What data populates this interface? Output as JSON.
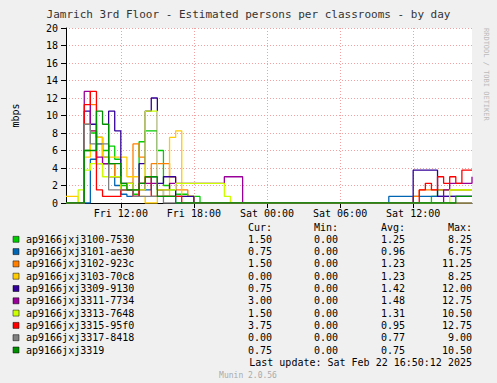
{
  "chart_data": {
    "type": "line",
    "title": "Jamrich 3rd Floor - Estimated persons per classrooms - by day",
    "y_label": "mbps",
    "line_style": "step",
    "grid": true,
    "xlim": [
      7.5,
      40.83
    ],
    "xticks": [
      {
        "value": 12,
        "label": "Fri 12:00"
      },
      {
        "value": 18,
        "label": "Fri 18:00"
      },
      {
        "value": 24,
        "label": "Sat 00:00"
      },
      {
        "value": 30,
        "label": "Sat 06:00"
      },
      {
        "value": 36,
        "label": "Sat 12:00"
      }
    ],
    "ylim": [
      0,
      20
    ],
    "yticks": [
      0,
      2,
      4,
      6,
      8,
      10,
      12,
      14,
      16,
      18,
      20
    ],
    "x": [
      7.5,
      8,
      8.5,
      9,
      9.5,
      10,
      10.5,
      11,
      11.5,
      12,
      12.5,
      13,
      13.5,
      14,
      14.5,
      15,
      15.5,
      16,
      16.5,
      17,
      17.5,
      18,
      18.5,
      19,
      19.5,
      20,
      20.5,
      21,
      22,
      23,
      24,
      25,
      26,
      27,
      28,
      29,
      30,
      31,
      32,
      33,
      33.5,
      34,
      34.5,
      35,
      35.5,
      36,
      36.5,
      37,
      37.5,
      38,
      38.5,
      39,
      39.5,
      40,
      40.5,
      40.83
    ],
    "stat_headers": [
      "Cur:",
      "Min:",
      "Avg:",
      "Max:"
    ],
    "series": [
      {
        "name": "ap9166jxj3100-7530",
        "color": "#00CC00",
        "stats": [
          "1.50",
          "0.00",
          "1.25",
          "8.25"
        ],
        "values": [
          0,
          0,
          0,
          6,
          8,
          7.5,
          6,
          6.5,
          5,
          2,
          1.5,
          1,
          7,
          8.25,
          8.25,
          6,
          2,
          1.5,
          1,
          1,
          0.75,
          0.75,
          0,
          0,
          0,
          0,
          0,
          0,
          0,
          0,
          0,
          0,
          0,
          0,
          0,
          0,
          0,
          0,
          0,
          0,
          0,
          0,
          0,
          0,
          0,
          0,
          0,
          0,
          0.75,
          1.5,
          1.5,
          1.5,
          1.5,
          1.5,
          1.5,
          1.5
        ]
      },
      {
        "name": "ap9166jxj3101-ae30",
        "color": "#0066B3",
        "stats": [
          "0.75",
          "0.00",
          "0.96",
          "6.75"
        ],
        "values": [
          0,
          0,
          0,
          0,
          5,
          6.75,
          5.25,
          4.5,
          2,
          1,
          0.75,
          1.5,
          2.25,
          1.5,
          3,
          1.5,
          0.75,
          0.75,
          0,
          0,
          0,
          0,
          0,
          0,
          0,
          0,
          0,
          0,
          0,
          0,
          0,
          0,
          0,
          0,
          0,
          0,
          0,
          0,
          0,
          0,
          0,
          0.75,
          0.75,
          0.75,
          0.75,
          0.75,
          0.75,
          0.75,
          0.75,
          0.75,
          0.75,
          0.75,
          0.75,
          0.75,
          0.75,
          0.75
        ]
      },
      {
        "name": "ap9166jxj3102-923c",
        "color": "#FF8000",
        "stats": [
          "1.50",
          "0.00",
          "1.23",
          "11.25"
        ],
        "values": [
          0,
          0,
          0,
          9,
          11.25,
          7.5,
          4.5,
          4.5,
          3,
          1.5,
          2.25,
          6.75,
          5.25,
          3,
          4.5,
          4.5,
          4.5,
          3,
          1.5,
          1.5,
          0.75,
          0,
          0,
          0,
          0,
          0,
          0,
          0,
          0,
          0,
          0,
          0,
          0,
          0,
          0,
          0,
          0,
          0,
          0,
          0,
          0,
          0,
          0,
          0,
          0,
          0.75,
          1.5,
          1.5,
          1.5,
          1.5,
          1.5,
          1.5,
          1.5,
          1.5,
          1.5,
          1.5
        ]
      },
      {
        "name": "ap9166jxj3103-70c8",
        "color": "#FFCC00",
        "stats": [
          "0.00",
          "0.00",
          "1.23",
          "8.25"
        ],
        "values": [
          0.75,
          0.75,
          0,
          5.25,
          8.25,
          7.5,
          5.25,
          5.25,
          5.25,
          5.25,
          3,
          3,
          0.75,
          0,
          0,
          1.5,
          0.75,
          7.5,
          8.25,
          0.75,
          0.75,
          0,
          0,
          0,
          0,
          0,
          0,
          0,
          0,
          0,
          0,
          0,
          0,
          0,
          0,
          0,
          0,
          0,
          0,
          0,
          0,
          0,
          0,
          0,
          0,
          0,
          0,
          0,
          0,
          0,
          0,
          0,
          0,
          0,
          0,
          0
        ]
      },
      {
        "name": "ap9166jxj3309-9130",
        "color": "#330099",
        "stats": [
          "0.75",
          "0.00",
          "1.42",
          "12.00"
        ],
        "values": [
          0,
          0,
          0,
          10.5,
          9,
          4.5,
          4.5,
          10.5,
          8.25,
          2.25,
          2.25,
          1.5,
          4.5,
          10.5,
          12,
          2.25,
          3,
          3,
          0.75,
          0.75,
          0.75,
          0,
          0,
          0,
          0,
          0,
          0,
          0,
          0,
          0,
          0,
          0,
          0,
          0,
          0,
          0,
          0,
          0,
          0,
          0,
          0,
          0,
          0,
          0,
          0,
          3.75,
          3.75,
          3.75,
          3.75,
          0.75,
          0.75,
          0.75,
          0.75,
          0.75,
          0.75,
          0.75
        ]
      },
      {
        "name": "ap9166jxj3311-7734",
        "color": "#990099",
        "stats": [
          "3.00",
          "0.00",
          "1.48",
          "12.75"
        ],
        "values": [
          0,
          0,
          0,
          12.75,
          8.25,
          5.25,
          4.5,
          3,
          3,
          1.5,
          1.5,
          0.75,
          1.5,
          2.25,
          2.25,
          1.5,
          1.5,
          2.25,
          2.25,
          2.25,
          2.25,
          2.25,
          2.25,
          2.25,
          2.25,
          2.25,
          3,
          3,
          0,
          0,
          0,
          0,
          0,
          0,
          0,
          0,
          0,
          0,
          0,
          0,
          0,
          0,
          0,
          0,
          0,
          0,
          0,
          0,
          0,
          0,
          1.5,
          2.25,
          2.25,
          2.25,
          2.25,
          3
        ]
      },
      {
        "name": "ap9166jxj3313-7648",
        "color": "#CCFF00",
        "stats": [
          "1.50",
          "0.00",
          "1.31",
          "10.50"
        ],
        "values": [
          0,
          0,
          1.5,
          3.75,
          4.5,
          4.5,
          3,
          3,
          3,
          1.5,
          2.25,
          1.5,
          1.5,
          10.5,
          10.5,
          1.5,
          1.5,
          1.5,
          2.25,
          2.25,
          2.25,
          2.25,
          2.25,
          2.25,
          2.25,
          2.25,
          0.75,
          0,
          0,
          0,
          0,
          0,
          0,
          0,
          0,
          0,
          0,
          0,
          0,
          0,
          0,
          0,
          0,
          0,
          0,
          0,
          0,
          0,
          0,
          0,
          0,
          1.5,
          1.5,
          1.5,
          1.5,
          1.5
        ]
      },
      {
        "name": "ap9166jxj3315-95f0",
        "color": "#FF0000",
        "stats": [
          "3.75",
          "0.00",
          "0.95",
          "12.75"
        ],
        "values": [
          0,
          0,
          0,
          11.25,
          12.75,
          1.5,
          0.75,
          0.75,
          0.75,
          1.5,
          1.5,
          0.75,
          2.25,
          3,
          0.75,
          0.75,
          0.75,
          0.75,
          0.75,
          0,
          0,
          0,
          0,
          0,
          0,
          0,
          0,
          0,
          0,
          0,
          0,
          0,
          0,
          0,
          0,
          0,
          0,
          0,
          0,
          0,
          0,
          0,
          0,
          0,
          0,
          0,
          1.5,
          2.25,
          1.5,
          3,
          2.25,
          3,
          2.25,
          3.75,
          3.75,
          3.75
        ]
      },
      {
        "name": "ap9166jxj3317-8418",
        "color": "#808080",
        "stats": [
          "0.00",
          "0.00",
          "0.77",
          "9.00"
        ],
        "values": [
          0,
          0,
          0,
          9,
          6.75,
          6.75,
          6.75,
          1.5,
          1.5,
          1.5,
          1.5,
          0.75,
          0.75,
          0.75,
          0.75,
          0.75,
          0,
          0,
          0,
          0,
          0,
          0,
          0,
          0,
          0,
          0,
          0,
          0,
          0,
          0,
          0,
          0,
          0,
          0,
          0,
          0,
          0,
          0,
          0,
          0,
          0,
          0,
          0,
          0,
          0,
          0,
          0,
          0,
          0,
          0,
          0,
          0,
          0,
          0,
          0,
          0
        ]
      },
      {
        "name": "ap9166jxj3319",
        "color": "#008F00",
        "stats": [
          "0.75",
          "0.00",
          "0.75",
          "10.50"
        ],
        "values": [
          0,
          0,
          0,
          6,
          6,
          10.5,
          9,
          4.5,
          4.5,
          2.25,
          1.5,
          1.5,
          2.25,
          3,
          3,
          0.75,
          0.75,
          0.75,
          0,
          0,
          0,
          0,
          0,
          0,
          0,
          0,
          0,
          0,
          0,
          0,
          0,
          0,
          0,
          0,
          0,
          0,
          0,
          0,
          0,
          0,
          0,
          0,
          0,
          0,
          0,
          0,
          0,
          0,
          0,
          0,
          0,
          0,
          0.75,
          0.75,
          0.75,
          0.75
        ]
      }
    ],
    "footer": "Last update: Sat Feb 22 16:50:12 2025",
    "version": "Munin 2.0.56",
    "watermark": "RRDTOOL / TOBI OETIKER"
  }
}
